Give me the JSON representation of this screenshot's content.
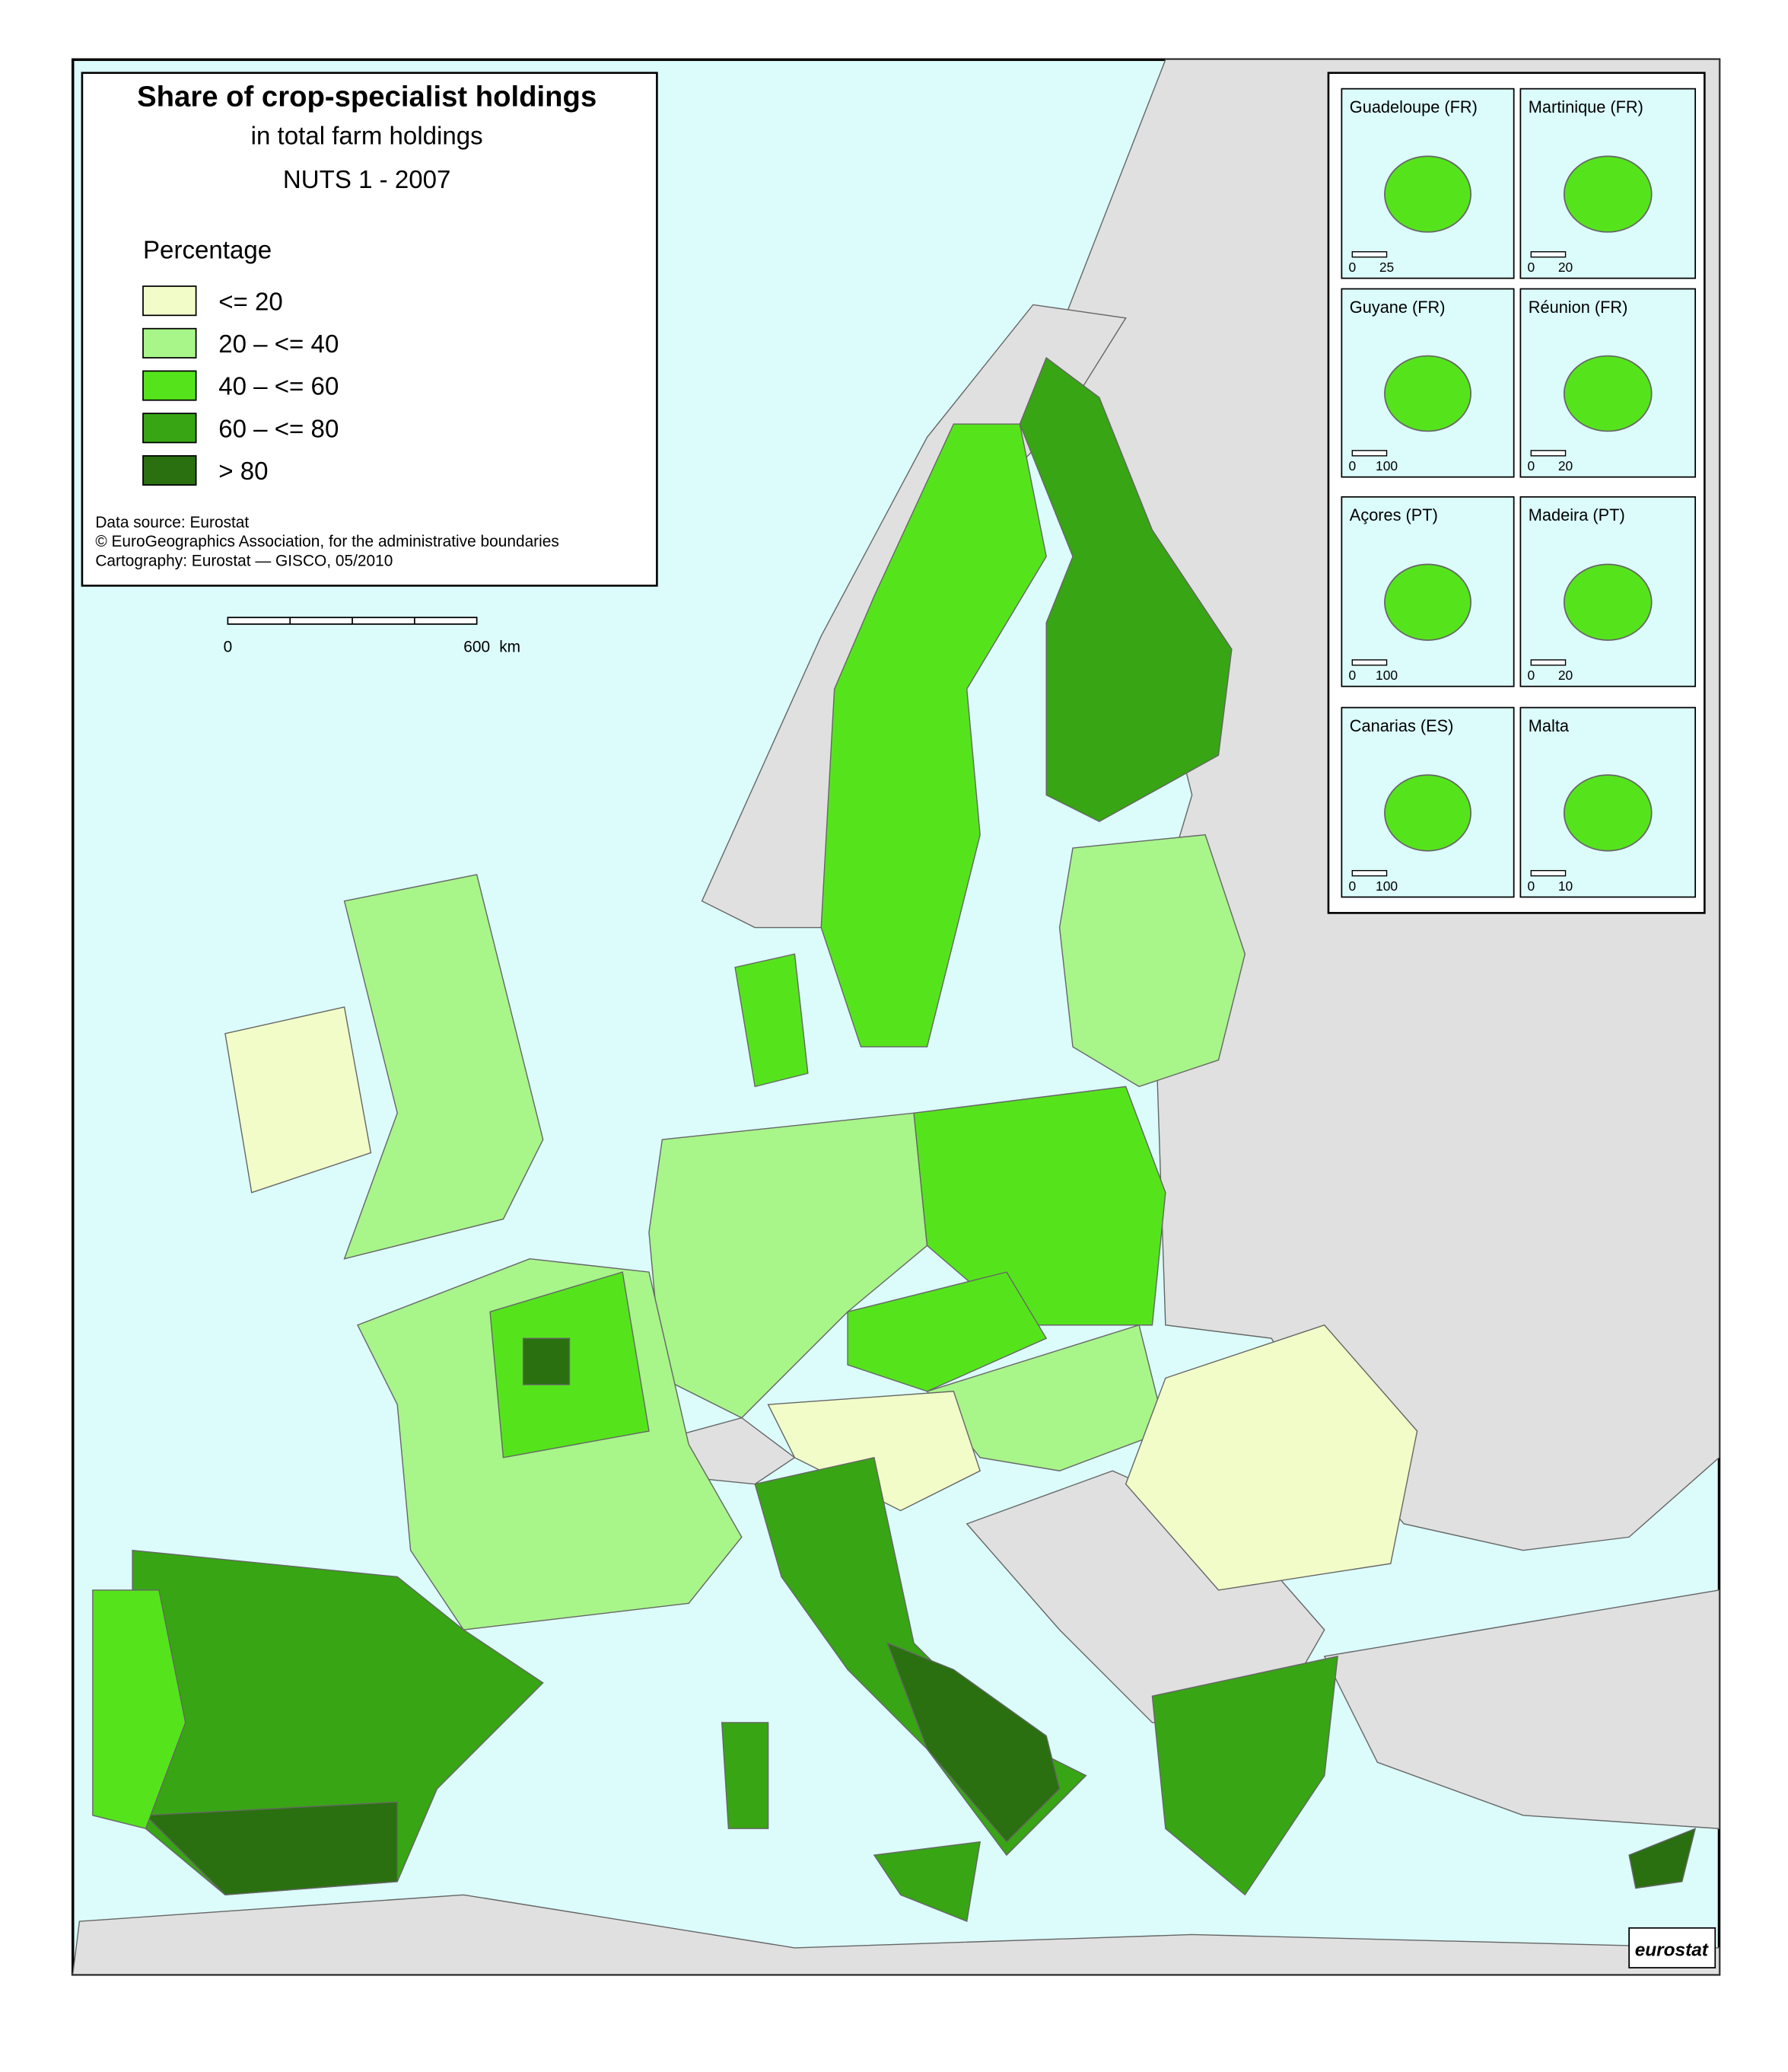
{
  "header": {
    "title": "Share of crop-specialist holdings",
    "subtitle": "in total farm holdings",
    "period": "NUTS 1 - 2007"
  },
  "legend": {
    "title": "Percentage",
    "items": [
      {
        "label": "<= 20",
        "color": "#f2fcc8"
      },
      {
        "label": "20 – <= 40",
        "color": "#a8f58a"
      },
      {
        "label": "40 – <= 60",
        "color": "#55e41c"
      },
      {
        "label": "60 – <= 80",
        "color": "#38a514"
      },
      {
        "label": "> 80",
        "color": "#2a7010"
      }
    ]
  },
  "source": [
    "Data source: Eurostat",
    "© EuroGeographics Association, for the administrative boundaries",
    "Cartography: Eurostat — GISCO, 05/2010"
  ],
  "scale_bar": {
    "labels": [
      "0",
      "600"
    ],
    "unit": "km"
  },
  "insets": [
    {
      "name": "Guadeloupe (FR)",
      "scale": [
        "0",
        "25"
      ]
    },
    {
      "name": "Martinique (FR)",
      "scale": [
        "0",
        "20"
      ]
    },
    {
      "name": "Guyane (FR)",
      "scale": [
        "0",
        "100"
      ]
    },
    {
      "name": "Réunion (FR)",
      "scale": [
        "0",
        "20"
      ]
    },
    {
      "name": "Açores (PT)",
      "scale": [
        "0",
        "100"
      ]
    },
    {
      "name": "Madeira (PT)",
      "scale": [
        "0",
        "20"
      ]
    },
    {
      "name": "Canarias (ES)",
      "scale": [
        "0",
        "100"
      ]
    },
    {
      "name": "Malta",
      "scale": [
        "0",
        "10"
      ]
    }
  ],
  "logo": "eurostat"
}
